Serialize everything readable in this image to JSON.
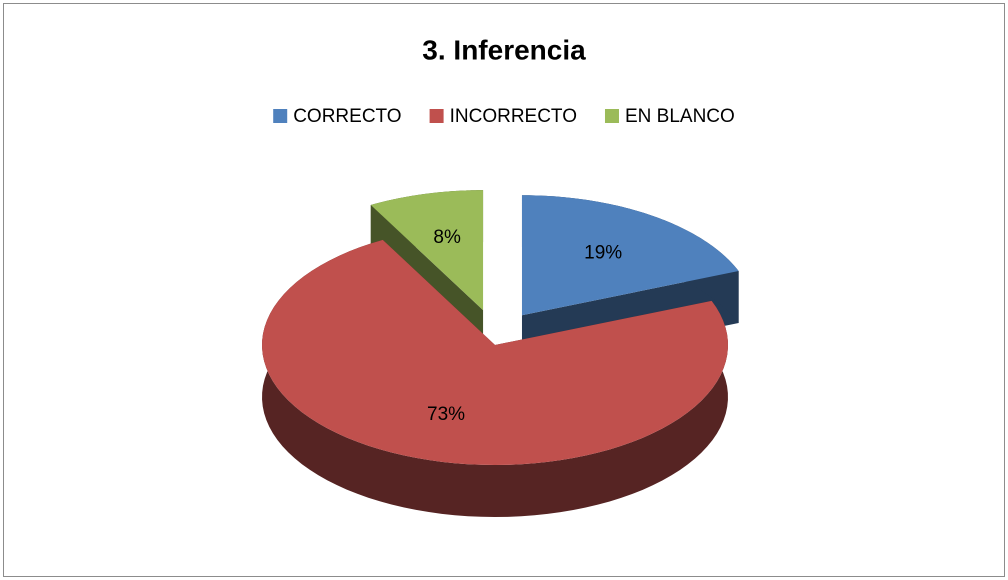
{
  "chart_data": {
    "type": "pie",
    "title": "3. Inferencia",
    "categories": [
      "CORRECTO",
      "INCORRECTO",
      "EN BLANCO"
    ],
    "values": [
      19,
      73,
      8
    ],
    "value_labels": [
      "19%",
      "73%",
      "8%"
    ],
    "colors": [
      "#4f81bd",
      "#c0504d",
      "#9bbb59"
    ],
    "legend": "top"
  }
}
